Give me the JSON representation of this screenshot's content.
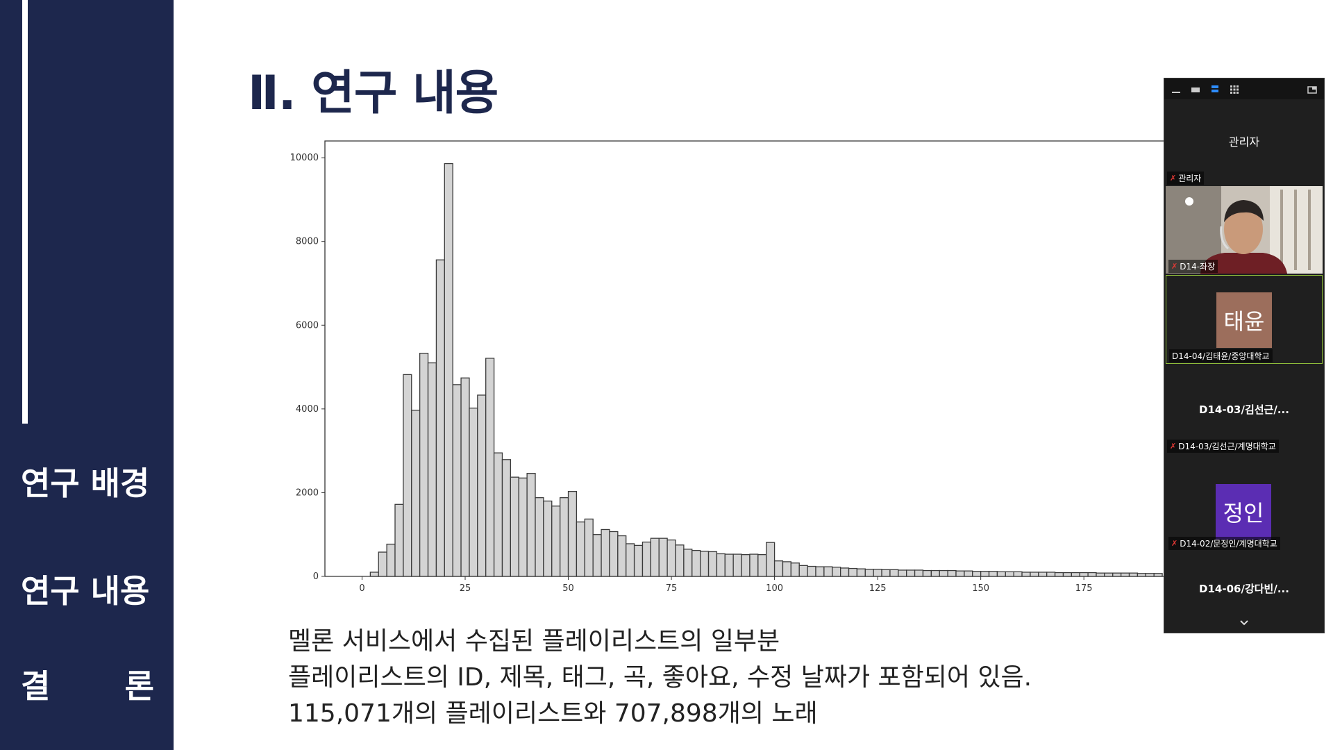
{
  "sidebar": {
    "items": [
      {
        "label": "연구 배경"
      },
      {
        "label": "연구 내용"
      },
      {
        "label_left": "결",
        "label_right": "론"
      }
    ]
  },
  "slide": {
    "title": "Ⅱ. 연구 내용",
    "description": [
      "멜론 서비스에서 수집된 플레이리스트의 일부분",
      "플레이리스트의 ID, 제목, 태그, 곡, 좋아요, 수정 날짜가 포함되어 있음.",
      "115,071개의 플레이리스트와 707,898개의 노래"
    ]
  },
  "chart_data": {
    "type": "bar",
    "title": "",
    "xlabel": "",
    "ylabel": "",
    "xlim": [
      -9,
      195
    ],
    "ylim": [
      0,
      10400
    ],
    "x_ticks": [
      "0",
      "25",
      "50",
      "75",
      "100",
      "125",
      "150",
      "175"
    ],
    "y_ticks": [
      "0",
      "2000",
      "4000",
      "6000",
      "8000",
      "10000"
    ],
    "bin_width": 2,
    "bin_starts": [
      2,
      4,
      6,
      8,
      10,
      12,
      14,
      16,
      18,
      20,
      22,
      24,
      26,
      28,
      30,
      32,
      34,
      36,
      38,
      40,
      42,
      44,
      46,
      48,
      50,
      52,
      54,
      56,
      58,
      60,
      62,
      64,
      66,
      68,
      70,
      72,
      74,
      76,
      78,
      80,
      82,
      84,
      86,
      88,
      90,
      92,
      94,
      96,
      98,
      100,
      102,
      104,
      106,
      108,
      110,
      112,
      114,
      116,
      118,
      120,
      122,
      124,
      126,
      128,
      130,
      132,
      134,
      136,
      138,
      140,
      142,
      144,
      146,
      148,
      150,
      152,
      154,
      156,
      158,
      160,
      162,
      164,
      166,
      168,
      170,
      172,
      174,
      176,
      178,
      180,
      182,
      184,
      186,
      188,
      190,
      192
    ],
    "values": [
      100,
      580,
      770,
      1720,
      4820,
      3970,
      5330,
      5100,
      7560,
      9860,
      4580,
      4740,
      4020,
      4330,
      5210,
      2950,
      2790,
      2370,
      2350,
      2460,
      1880,
      1800,
      1680,
      1880,
      2030,
      1300,
      1370,
      1000,
      1120,
      1070,
      970,
      780,
      740,
      820,
      910,
      910,
      870,
      750,
      650,
      620,
      600,
      590,
      540,
      530,
      530,
      520,
      530,
      520,
      810,
      370,
      350,
      320,
      260,
      240,
      230,
      230,
      220,
      200,
      190,
      180,
      170,
      170,
      160,
      160,
      150,
      150,
      150,
      140,
      140,
      140,
      140,
      130,
      130,
      120,
      120,
      120,
      110,
      110,
      110,
      100,
      100,
      100,
      100,
      90,
      90,
      90,
      90,
      90,
      80,
      80,
      80,
      80,
      80,
      70,
      70,
      70
    ]
  },
  "vc": {
    "host_title": "관리자",
    "host_label": "관리자",
    "video_label": "D14-좌장",
    "tiles": [
      {
        "avatar_text": "태윤",
        "avatar_color": "#9c6e5c",
        "label": "D14-04/김태윤/중앙대학교"
      },
      {
        "name": "D14-03/김선근/...",
        "label": "D14-03/김선근/계명대학교"
      },
      {
        "avatar_text": "정인",
        "avatar_color": "#5b2db3",
        "label": "D14-02/문정인/계명대학교"
      },
      {
        "name": "D14-06/강다빈/..."
      }
    ]
  }
}
